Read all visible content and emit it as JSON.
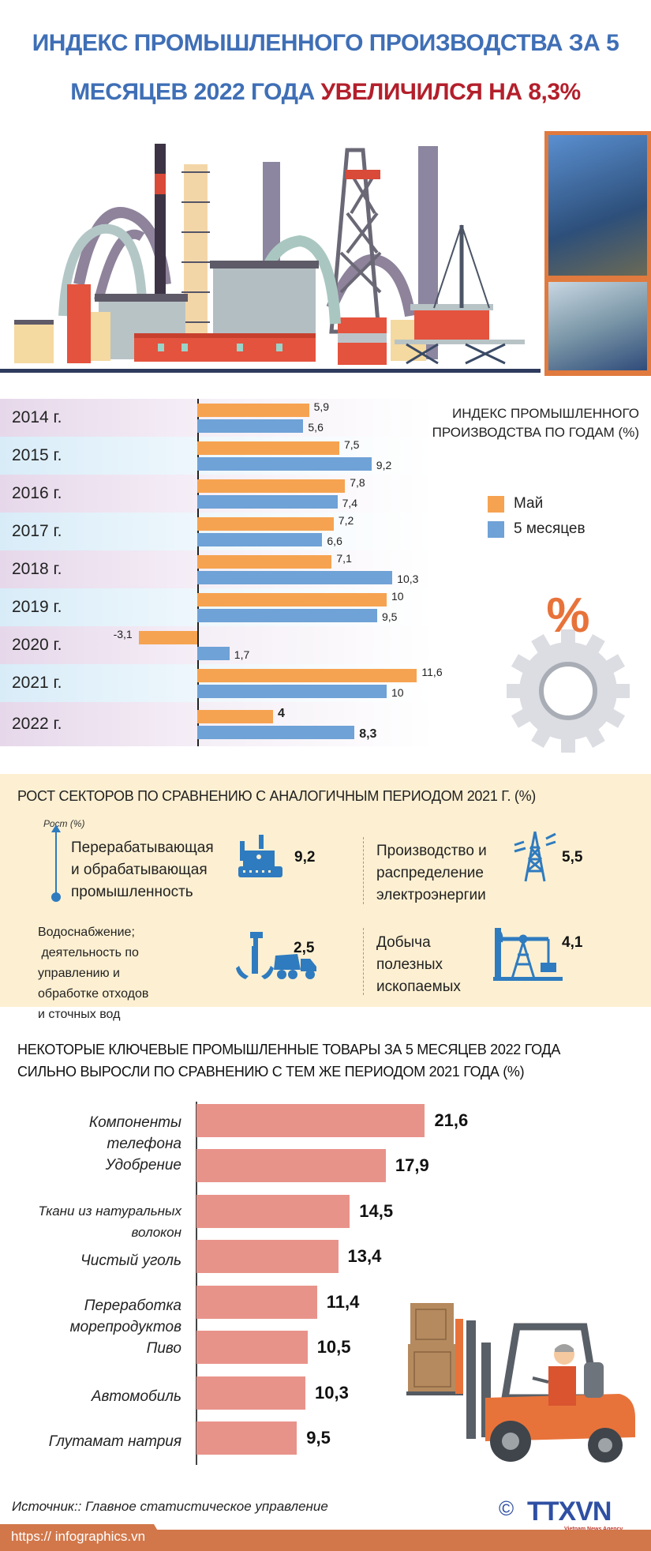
{
  "header": {
    "title_line1": "ИНДЕКС ПРОМЫШЛЕННОГО ПРОИЗВОДСТВА ЗА 5",
    "title_line2_blue": "МЕСЯЦЕВ 2022 ГОДА ",
    "title_line2_red": "УВЕЛИЧИЛСЯ НА  8,3%"
  },
  "colors": {
    "title_blue": "#3f6fb6",
    "title_red": "#b31f2b",
    "may": "#f6a351",
    "five_months": "#6fa2d6",
    "sector_icon_blue": "#2f7bbf",
    "sector_bg": "#fdf0d2",
    "goods_bar": "#e8938a",
    "footer": "#d2774a"
  },
  "chart1": {
    "title": "ИНДЕКС ПРОМЫШЛЕННОГО ПРОИЗВОДСТВА ПО ГОДАМ (%)",
    "title_line1": "ИНДЕКС ПРОМЫШЛЕННОГО",
    "title_line2": "ПРОИЗВОДСТВА ПО ГОДАМ (%)",
    "legend": {
      "may": "Май",
      "five_months": "5 месяцев"
    },
    "years": [
      "2014 г.",
      "2015 г.",
      "2016 г.",
      "2017 г.",
      "2018 г.",
      "2019 г.",
      "2020 г.",
      "2021 г.",
      "2022 г."
    ],
    "may_labels": [
      "5,9",
      "7,5",
      "7,8",
      "7,2",
      "7,1",
      "10",
      "-3,1",
      "11,6",
      "4"
    ],
    "five_labels": [
      "5,6",
      "9,2",
      "7,4",
      "6,6",
      "10,3",
      "9,5",
      "1,7",
      "10",
      "8,3"
    ]
  },
  "sectors": {
    "title": "РОСТ СЕКТОРОВ ПО СРАВНЕНИЮ С АНАЛОГИЧНЫМ ПЕРИОДОМ 2021 Г. (%)",
    "growth_label": "Рост (%)",
    "items": [
      {
        "line1": "Перерабатывающая",
        "line2": "и обрабатывающая",
        "line3": "промышленность",
        "value": "9,2",
        "icon": "factory-icon"
      },
      {
        "line1": "Производство и",
        "line2": "распределение",
        "line3": "электроэнергии",
        "value": "5,5",
        "icon": "power-tower-icon"
      },
      {
        "line1": "Водоснабжение;",
        "line2": " деятельность по",
        "line3": "управлению и",
        "line4": "обработке отходов",
        "line5": "и сточных вод",
        "value": "2,5",
        "icon": "water-truck-icon"
      },
      {
        "line1": "Добыча",
        "line2": "полезных",
        "line3": "ископаемых",
        "value": "4,1",
        "icon": "oil-pump-icon"
      }
    ]
  },
  "chart2": {
    "title_line1": "НЕКОТОРЫЕ КЛЮЧЕВЫЕ ПРОМЫШЛЕННЫЕ ТОВАРЫ ЗА 5 МЕСЯЦЕВ 2022 ГОДА",
    "title_line2": "СИЛЬНО ВЫРОСЛИ ПО СРАВНЕНИЮ С ТЕМ ЖЕ ПЕРИОДОМ 2021 ГОДА (%)",
    "labels": [
      "Компоненты телефона",
      "Удобрение",
      "Ткани из натуральных волокон",
      "Чистый уголь",
      "Переработка морепродуктов",
      "Пиво",
      "Автомобиль",
      "Глутамат натрия"
    ],
    "label_lines": {
      "l0a": "Компоненты",
      "l0b": "телефона",
      "l1": "Удобрение",
      "l2a": "Ткани из натуральных",
      "l2b": "волокон",
      "l3": "Чистый уголь",
      "l4a": "Переработка",
      "l4b": "морепродуктов",
      "l5": "Пиво",
      "l6": "Автомобиль",
      "l7": "Глутамат натрия"
    },
    "value_labels": [
      "21,6",
      "17,9",
      "14,5",
      "13,4",
      "11,4",
      "10,5",
      "10,3",
      "9,5"
    ]
  },
  "footer": {
    "source": "Источник:: Главное статистическое управление",
    "url": "https:// infographics.vn",
    "copyright": "©",
    "logo": "TTXVN",
    "logo_sub": "Vietnam News Agency"
  },
  "chart_data": [
    {
      "type": "bar",
      "orientation": "horizontal",
      "title": "ИНДЕКС ПРОМЫШЛЕННОГО ПРОИЗВОДСТВА ПО ГОДАМ (%)",
      "categories": [
        "2014 г.",
        "2015 г.",
        "2016 г.",
        "2017 г.",
        "2018 г.",
        "2019 г.",
        "2020 г.",
        "2021 г.",
        "2022 г."
      ],
      "series": [
        {
          "name": "Май",
          "color": "#f6a351",
          "values": [
            5.9,
            7.5,
            7.8,
            7.2,
            7.1,
            10,
            -3.1,
            11.6,
            4
          ]
        },
        {
          "name": "5 месяцев",
          "color": "#6fa2d6",
          "values": [
            5.6,
            9.2,
            7.4,
            6.6,
            10.3,
            9.5,
            1.7,
            10,
            8.3
          ]
        }
      ],
      "xlabel": "",
      "ylabel": "",
      "xlim": [
        -4,
        12
      ],
      "grid": false,
      "legend_position": "right"
    },
    {
      "type": "bar",
      "orientation": "horizontal",
      "title": "РОСТ СЕКТОРОВ ПО СРАВНЕНИЮ С АНАЛОГИЧНЫМ ПЕРИОДОМ 2021 Г. (%)",
      "categories": [
        "Перерабатывающая и обрабатывающая промышленность",
        "Производство и распределение электроэнергии",
        "Водоснабжение; деятельность по управлению и обработке отходов и сточных вод",
        "Добыча полезных ископаемых"
      ],
      "values": [
        9.2,
        5.5,
        2.5,
        4.1
      ],
      "ylabel": "Рост (%)"
    },
    {
      "type": "bar",
      "orientation": "horizontal",
      "title": "НЕКОТОРЫЕ КЛЮЧЕВЫЕ ПРОМЫШЛЕННЫЕ ТОВАРЫ ЗА 5 МЕСЯЦЕВ 2022 ГОДА СИЛЬНО ВЫРОСЛИ ПО СРАВНЕНИЮ С ТЕМ ЖЕ ПЕРИОДОМ 2021 ГОДА (%)",
      "categories": [
        "Компоненты телефона",
        "Удобрение",
        "Ткани из натуральных волокон",
        "Чистый уголь",
        "Переработка морепродуктов",
        "Пиво",
        "Автомобиль",
        "Глутамат натрия"
      ],
      "values": [
        21.6,
        17.9,
        14.5,
        13.4,
        11.4,
        10.5,
        10.3,
        9.5
      ],
      "xlim": [
        0,
        22
      ],
      "grid": false
    }
  ]
}
